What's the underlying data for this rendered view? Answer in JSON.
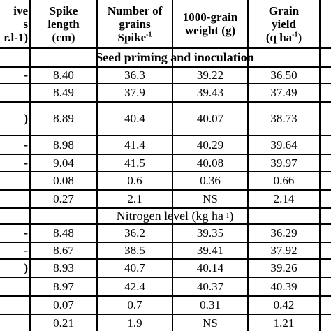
{
  "header": {
    "col0_lines": [
      "ive",
      "s",
      "r.l-1)"
    ],
    "col1_lines": [
      "Spike",
      "length",
      "(cm)"
    ],
    "col2_lines": [
      "Number of",
      "grains",
      "Spike"
    ],
    "col2_sup": "-1",
    "col3_lines": [
      "1000-grain",
      "weight (g)"
    ],
    "col4_lines": [
      "Grain",
      "yield",
      "(q ha"
    ],
    "col4_sup": "-1",
    "col4_close": ")"
  },
  "sections": {
    "seed": "Seed priming and inoculation",
    "nitrogen_prefix": "Nitrogen level (kg ha",
    "nitrogen_sup": "-1",
    "nitrogen_suffix": ")"
  },
  "seed_rows": [
    {
      "edge": "-",
      "spike": "8.40",
      "grains": "36.3",
      "weight": "39.22",
      "yield": "36.50"
    },
    {
      "edge": "",
      "spike": "8.49",
      "grains": "37.9",
      "weight": "39.43",
      "yield": "37.49"
    },
    {
      "edge": ")",
      "spike": "8.89",
      "grains": "40.4",
      "weight": "40.07",
      "yield": "38.73"
    },
    {
      "edge": "-",
      "spike": "8.98",
      "grains": "41.4",
      "weight": "40.29",
      "yield": "39.64"
    },
    {
      "edge": "-",
      "spike": "9.04",
      "grains": "41.5",
      "weight": "40.08",
      "yield": "39.97"
    },
    {
      "edge": "",
      "spike": "0.08",
      "grains": "0.6",
      "weight": "0.36",
      "yield": "0.66"
    },
    {
      "edge": "",
      "spike": "0.27",
      "grains": "2.1",
      "weight": "NS",
      "yield": "2.14"
    }
  ],
  "nitrogen_rows": [
    {
      "edge": "-",
      "spike": "8.48",
      "grains": "36.2",
      "weight": "39.35",
      "yield": "36.29"
    },
    {
      "edge": "-",
      "spike": "8.67",
      "grains": "38.5",
      "weight": "39.41",
      "yield": "37.92"
    },
    {
      "edge": ")",
      "spike": "8.93",
      "grains": "40.7",
      "weight": "40.14",
      "yield": "39.26"
    },
    {
      "edge": "",
      "spike": "8.97",
      "grains": "42.4",
      "weight": "40.37",
      "yield": "40.39"
    },
    {
      "edge": "",
      "spike": "0.07",
      "grains": "0.7",
      "weight": "0.31",
      "yield": "0.42"
    },
    {
      "edge": "",
      "spike": "0.21",
      "grains": "1.9",
      "weight": "NS",
      "yield": "1.21"
    }
  ]
}
